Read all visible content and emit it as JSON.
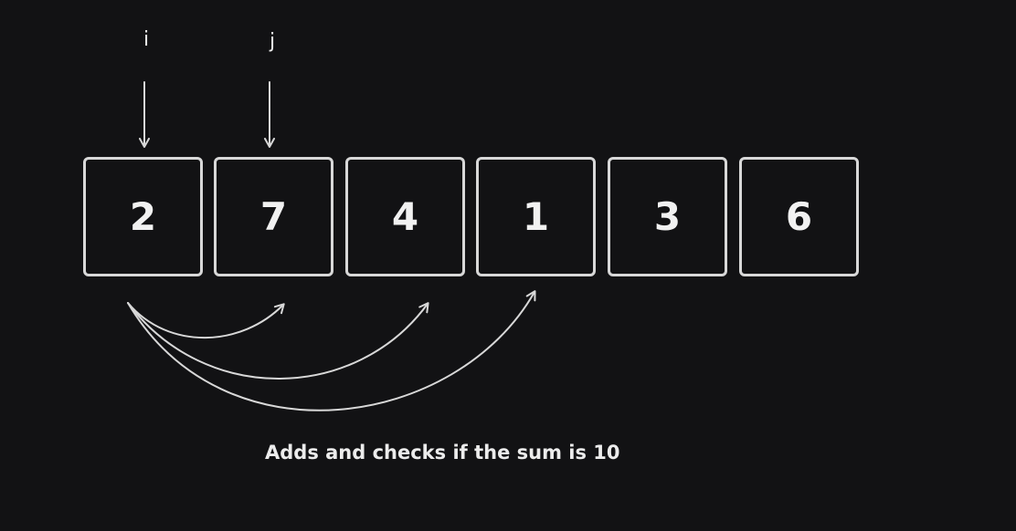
{
  "pointers": [
    {
      "label": "i",
      "target_index": 0
    },
    {
      "label": "j",
      "target_index": 1
    }
  ],
  "array": [
    "2",
    "7",
    "4",
    "1",
    "3",
    "6"
  ],
  "caption": "Adds and checks if the sum is 10",
  "colors": {
    "background": "#121214",
    "stroke": "#d8d8d8",
    "text": "#ececec"
  },
  "arrows": [
    {
      "from_index": 0,
      "to_index": 1
    },
    {
      "from_index": 0,
      "to_index": 2
    },
    {
      "from_index": 0,
      "to_index": 3
    }
  ]
}
